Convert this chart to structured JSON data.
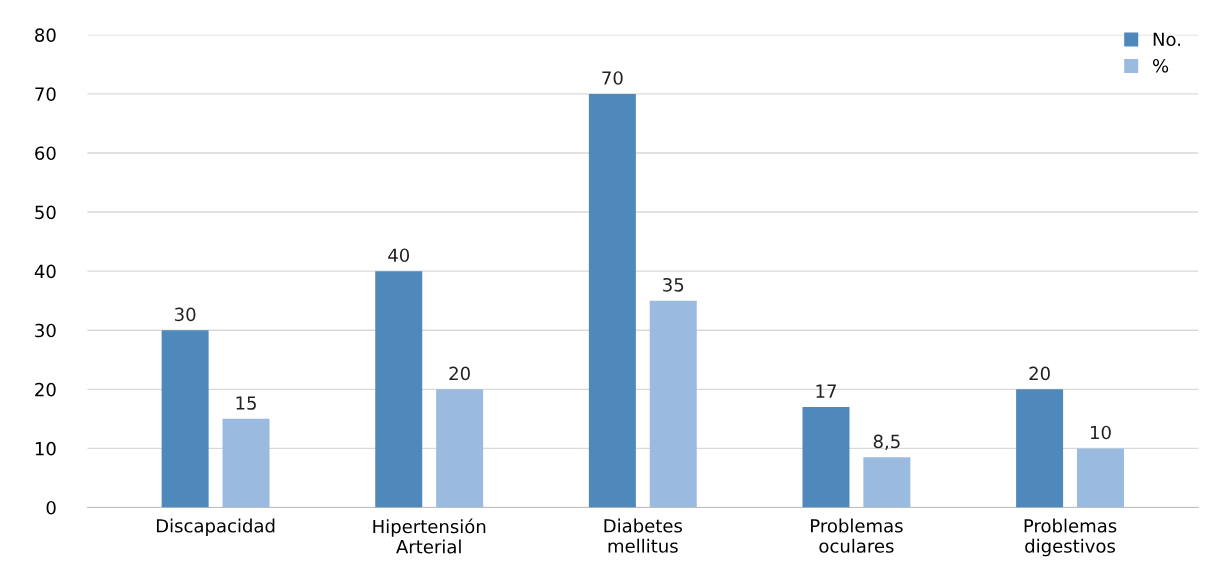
{
  "chart_data": {
    "type": "bar",
    "categories": [
      "Discapacidad",
      "Hipertensión\nArterial",
      "Diabetes\nmellitus",
      "Problemas\noculares",
      "Problemas\ndigestivos"
    ],
    "series": [
      {
        "name": "No.",
        "color": "#4f88bb",
        "values": [
          30,
          40,
          70,
          17,
          20
        ],
        "value_labels": [
          "30",
          "40",
          "70",
          "17",
          "20"
        ]
      },
      {
        "name": "%",
        "color": "#9bbae0",
        "values": [
          15,
          20,
          35,
          8.5,
          10
        ],
        "value_labels": [
          "15",
          "20",
          "35",
          "8,5",
          "10"
        ]
      }
    ],
    "ylim": [
      0,
      80
    ],
    "yticks": [
      0,
      10,
      20,
      30,
      40,
      50,
      60,
      70,
      80
    ],
    "grid": "y",
    "legend": "top right"
  }
}
